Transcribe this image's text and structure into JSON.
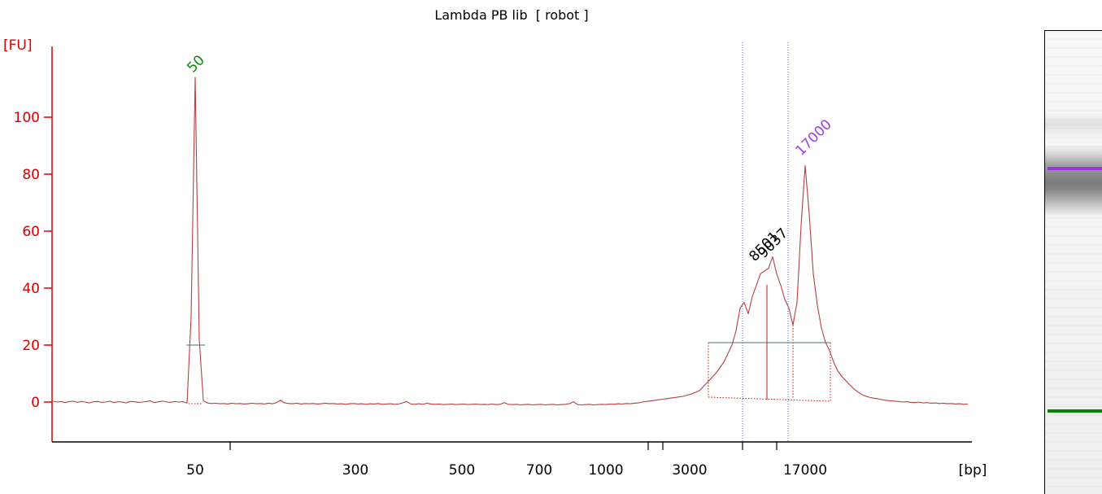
{
  "chart_data": {
    "type": "line",
    "title": "Lambda PB lib  [ robot ]",
    "xlabel": "[bp]",
    "ylabel": "[FU]",
    "x_tick_labels": [
      "50",
      "300",
      "500",
      "700",
      "1000",
      "3000",
      "17000"
    ],
    "y_ticks": [
      0,
      20,
      40,
      60,
      80,
      100
    ],
    "ylim": [
      -14,
      124
    ],
    "grid": false,
    "series": [
      {
        "values": [
          0.3,
          0,
          0.2,
          -0.2,
          0.1,
          0.3,
          -0.1,
          0.2,
          0,
          -0.3,
          0.1,
          0.2,
          -0.1,
          0,
          0.3,
          -0.2,
          0.1,
          0,
          -0.3,
          0.2,
          0.1,
          -0.1,
          0,
          0.2,
          0.4,
          -0.2,
          0.1,
          0.3,
          0,
          -0.1,
          0.2,
          0,
          0.1,
          -0.4,
          30,
          114,
          22,
          0.5,
          -0.3,
          -0.5,
          -0.4,
          -0.6,
          -0.5,
          -0.7,
          -0.4,
          -0.6,
          -0.5,
          -0.7,
          -0.6,
          -0.4,
          -0.6,
          -0.5,
          -0.7,
          -0.4,
          -0.6,
          -0.2,
          0.6,
          -0.3,
          -0.5,
          -0.6,
          -0.4,
          -0.7,
          -0.5,
          -0.6,
          -0.5,
          -0.7,
          -0.6,
          -0.4,
          -0.6,
          -0.5,
          -0.7,
          -0.6,
          -0.8,
          -0.6,
          -0.5,
          -0.7,
          -0.6,
          -0.8,
          -0.6,
          -0.7,
          -0.5,
          -0.8,
          -0.7,
          -0.6,
          -0.8,
          -0.7,
          -0.3,
          0.2,
          -0.7,
          -0.8,
          -0.6,
          -0.8,
          -0.4,
          -0.7,
          -0.8,
          -0.7,
          -0.9,
          -0.8,
          -0.7,
          -0.9,
          -0.8,
          -0.7,
          -0.9,
          -0.8,
          -0.7,
          -0.9,
          -0.8,
          -0.9,
          -0.7,
          -0.9,
          -0.8,
          -0.2,
          -0.8,
          -0.9,
          -0.8,
          -1.0,
          -0.9,
          -0.8,
          -1.0,
          -0.9,
          -0.8,
          -1.0,
          -0.9,
          -0.8,
          -1.0,
          -0.9,
          -0.8,
          -0.6,
          0.1,
          -0.9,
          -1.0,
          -0.9,
          -0.8,
          -1.0,
          -0.9,
          -0.8,
          -0.9,
          -0.7,
          -0.8,
          -0.6,
          -0.7,
          -0.5,
          -0.6,
          -0.4,
          -0.3,
          0,
          0.2,
          0.4,
          0.6,
          0.8,
          1.0,
          1.2,
          1.4,
          1.6,
          1.8,
          2.0,
          2.4,
          2.8,
          3.4,
          4.0,
          5.5,
          7.0,
          8.5,
          10,
          12,
          14,
          17,
          20,
          25,
          33,
          35,
          31,
          37,
          41,
          45,
          46,
          47,
          51,
          45,
          41,
          36,
          33,
          27,
          35,
          62,
          83,
          66,
          45,
          34,
          26,
          21,
          18,
          14,
          11,
          9,
          7.5,
          6,
          4.6,
          3.5,
          2.6,
          2.0,
          1.6,
          1.3,
          1.1,
          0.8,
          0.6,
          0.4,
          0.3,
          0.2,
          0,
          0.1,
          -0.1,
          -0.2,
          0,
          -0.3,
          -0.2,
          -0.4,
          -0.3,
          -0.5,
          -0.4,
          -0.6,
          -0.5,
          -0.7,
          -0.6,
          -0.8,
          -0.7
        ]
      }
    ],
    "peaks": [
      {
        "label": "50",
        "fu": 114,
        "color": "#0a8a0a"
      },
      {
        "label": "8501",
        "fu": 47,
        "color": "#000000"
      },
      {
        "label": "9037",
        "fu": 51,
        "color": "#000000"
      },
      {
        "label": "17000",
        "fu": 83,
        "color": "#a23ee6"
      }
    ]
  },
  "colors": {
    "y_axis": "#dd0000",
    "x_axis": "#000000",
    "trace": "#b5403f",
    "region_boundary": "#5a5aee",
    "level_line": "#4f6b78",
    "peak_annotation": "#d01010"
  },
  "gel_lane": {
    "upper_marker_color": "#9a33e6",
    "lower_marker_color": "#0a800a"
  }
}
